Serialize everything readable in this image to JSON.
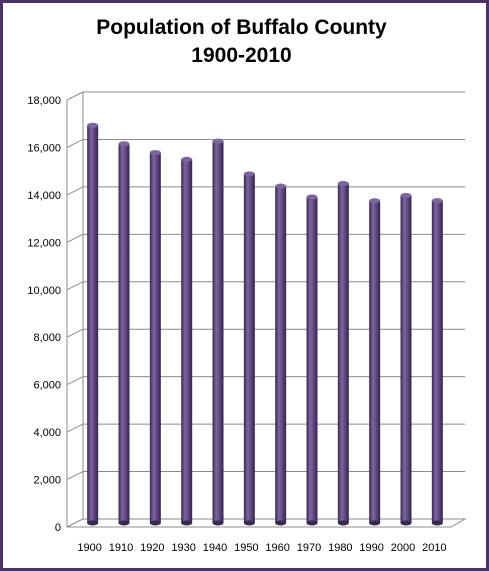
{
  "chart_data": {
    "type": "bar",
    "title": "Population of Buffalo County",
    "subtitle": "1900-2010",
    "xlabel": "",
    "ylabel": "",
    "categories": [
      "1900",
      "1910",
      "1920",
      "1930",
      "1940",
      "1950",
      "1960",
      "1970",
      "1980",
      "1990",
      "2000",
      "2010"
    ],
    "values": [
      16765,
      15987,
      15615,
      15330,
      16097,
      14719,
      14202,
      13743,
      14309,
      13584,
      13804,
      13587
    ],
    "ylim": [
      0,
      18000
    ],
    "yticks": [
      0,
      2000,
      4000,
      6000,
      8000,
      10000,
      12000,
      14000,
      16000,
      18000
    ],
    "ytick_labels": [
      "0",
      "2,000",
      "4,000",
      "6,000",
      "8,000",
      "10,000",
      "12,000",
      "14,000",
      "16,000",
      "18,000"
    ],
    "grid": true,
    "legend": "none",
    "colors": {
      "bar": "#5a4378",
      "bar_dark": "#3a2850",
      "bar_light": "#7d66a0",
      "frame": "#4b3463",
      "grid": "#8c8c8c"
    }
  }
}
